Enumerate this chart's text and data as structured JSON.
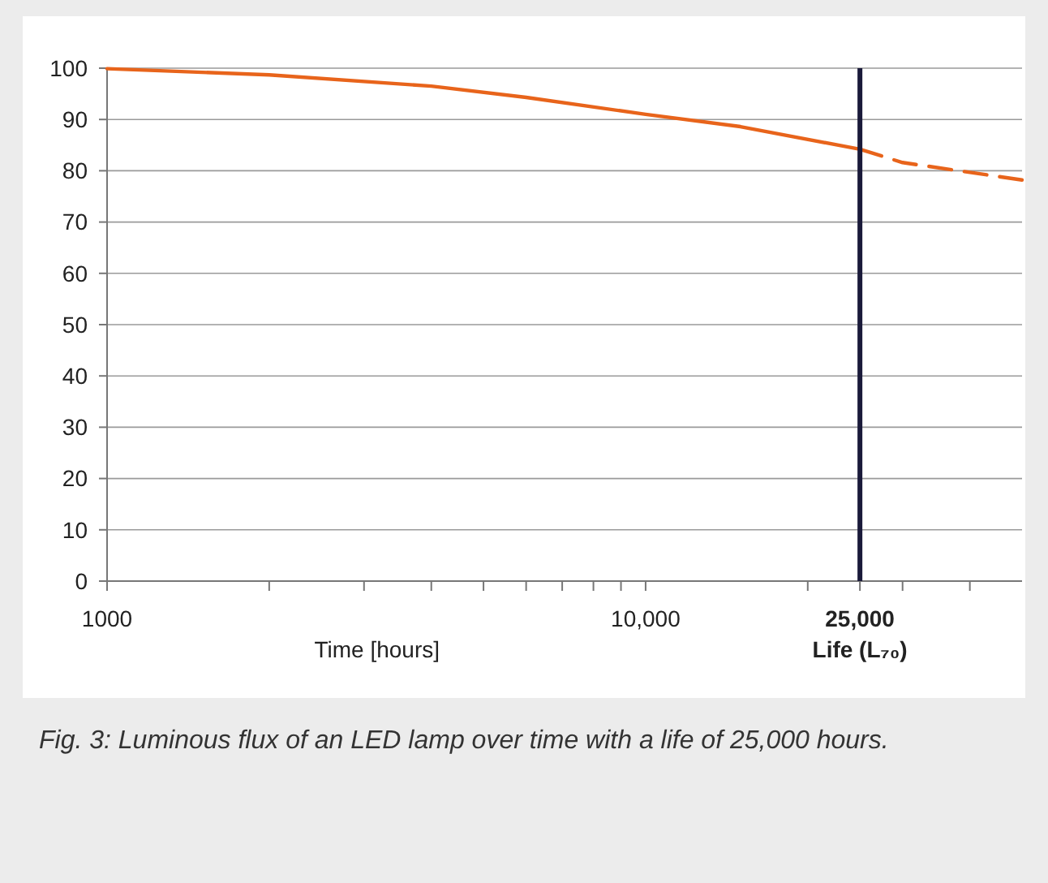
{
  "chart_data": {
    "type": "line",
    "xlabel": "Time [hours]",
    "log": "x",
    "xlim": [
      1000,
      50000
    ],
    "xticks": [
      1000,
      {
        "value": 2000,
        "label": null
      },
      {
        "value": 3000,
        "label": null
      },
      {
        "value": 4000,
        "label": null
      },
      {
        "value": 5000,
        "label": null
      },
      {
        "value": 6000,
        "label": null
      },
      {
        "value": 7000,
        "label": null
      },
      {
        "value": 8000,
        "label": null
      },
      {
        "value": 9000,
        "label": null
      },
      {
        "value": 10000,
        "label": "10,000"
      },
      {
        "value": 20000,
        "label": null
      },
      {
        "value": 25000,
        "label": "25,000"
      },
      {
        "value": 30000,
        "label": null
      },
      {
        "value": 40000,
        "label": null
      }
    ],
    "ylim": [
      0,
      100
    ],
    "yticks": [
      0,
      10,
      20,
      30,
      40,
      50,
      60,
      70,
      80,
      90,
      100
    ],
    "grid": "y",
    "marker": "none",
    "series": [
      {
        "color": "#e8641b",
        "line_style": "solid",
        "x": [
          1000,
          2000,
          4000,
          6000,
          10000,
          15000,
          25000
        ],
        "values": [
          99.9,
          98.7,
          96.5,
          94.3,
          91,
          88.6,
          84.2
        ]
      },
      {
        "color": "#e8641b",
        "line_style": "dashed",
        "x": [
          25000,
          30000,
          50000
        ],
        "values": [
          84.2,
          81.6,
          78.2
        ]
      }
    ],
    "ref_lines": [
      {
        "axis": "x",
        "value": 25000,
        "label": "Life (L₇₀)",
        "color": "#1a1a3a"
      }
    ],
    "annotations": [
      "Fig. 3: Luminous flux of an LED lamp over time with a life of 25,000 hours."
    ]
  }
}
